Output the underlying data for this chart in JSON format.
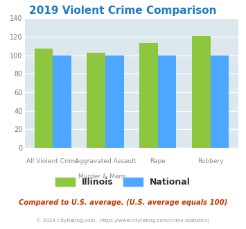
{
  "title": "2019 Violent Crime Comparison",
  "title_color": "#1a7bc4",
  "cat_line1": [
    "All Violent Crime",
    "Aggravated Assault",
    "Rape",
    "Robbery"
  ],
  "cat_line2": [
    "",
    "Murder & Mans...",
    "",
    ""
  ],
  "illinois_values": [
    107,
    103,
    113,
    121
  ],
  "national_values": [
    100,
    100,
    100,
    100
  ],
  "illinois_color": "#8dc63f",
  "national_color": "#4da6ff",
  "ylim": [
    0,
    140
  ],
  "yticks": [
    0,
    20,
    40,
    60,
    80,
    100,
    120,
    140
  ],
  "plot_bg_color": "#dce8ed",
  "grid_color": "#ffffff",
  "legend_illinois": "Illinois",
  "legend_national": "National",
  "footnote": "Compared to U.S. average. (U.S. average equals 100)",
  "footnote_color": "#cc3300",
  "copyright": "© 2024 CityRating.com - https://www.cityrating.com/crime-statistics/",
  "copyright_color": "#7a9aaa"
}
